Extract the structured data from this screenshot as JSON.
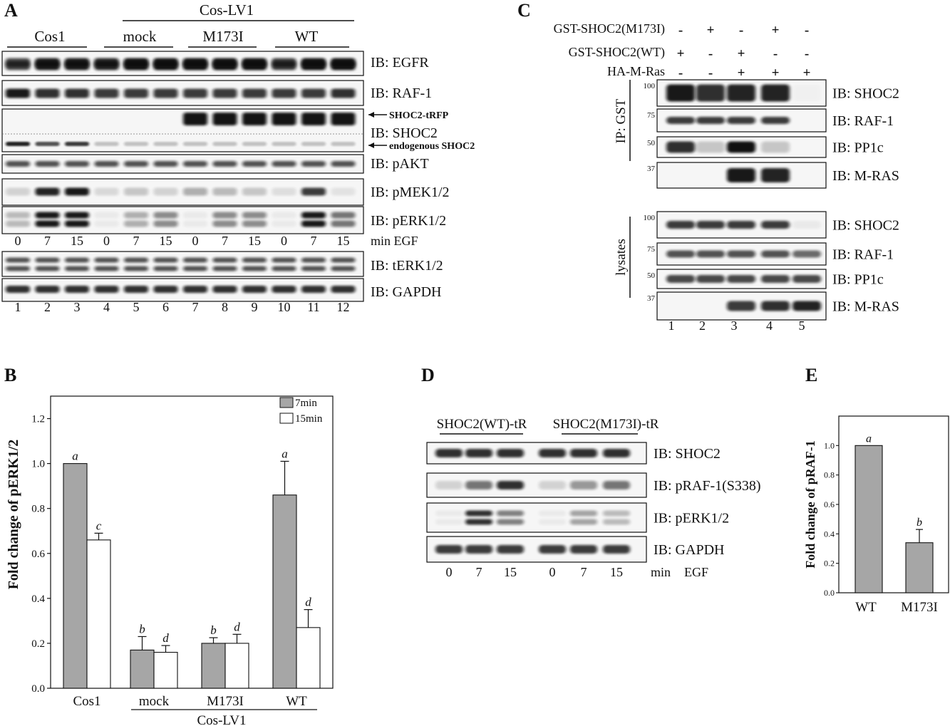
{
  "panelA": {
    "letter": "A",
    "group_header": "Cos-LV1",
    "groups": [
      "Cos1",
      "mock",
      "M173I",
      "WT"
    ],
    "blots": [
      {
        "key": "egfr",
        "label": "IB: EGFR"
      },
      {
        "key": "raf1",
        "label": "IB: RAF-1"
      },
      {
        "key": "shoc2",
        "label": "IB: SHOC2"
      },
      {
        "key": "pakt",
        "label": "IB: pAKT"
      },
      {
        "key": "pmek",
        "label": "IB: pMEK1/2"
      },
      {
        "key": "perk",
        "label": "IB: pERK1/2"
      },
      {
        "key": "terk",
        "label": "IB: tERK1/2"
      },
      {
        "key": "gapdh",
        "label": "IB: GAPDH"
      }
    ],
    "arrow_labels": {
      "tagged": "SHOC2-tRFP",
      "endogenous": "endogenous SHOC2"
    },
    "time_labels": [
      "0",
      "7",
      "15",
      "0",
      "7",
      "15",
      "0",
      "7",
      "15",
      "0",
      "7",
      "15"
    ],
    "time_unit": "min EGF",
    "lanes": [
      "1",
      "2",
      "3",
      "4",
      "5",
      "6",
      "7",
      "8",
      "9",
      "10",
      "11",
      "12"
    ]
  },
  "panelB": {
    "letter": "B",
    "group_caption": "Cos-LV1",
    "chart_data": {
      "type": "bar",
      "categories": [
        "Cos1",
        "mock",
        "M173I",
        "WT"
      ],
      "series": [
        {
          "name": "7min",
          "values": [
            1.0,
            0.17,
            0.2,
            0.86
          ],
          "errors": [
            0,
            0.06,
            0.025,
            0.15
          ],
          "letters": [
            "a",
            "b",
            "b",
            "a"
          ],
          "color": "#a6a6a6"
        },
        {
          "name": "15min",
          "values": [
            0.66,
            0.16,
            0.2,
            0.27
          ],
          "errors": [
            0.03,
            0.03,
            0.04,
            0.08
          ],
          "letters": [
            "c",
            "d",
            "d",
            "d"
          ],
          "color": "#ffffff"
        }
      ],
      "ylabel": "Fold change of pERK1/2",
      "ylim": [
        0,
        1.3
      ],
      "yticks": [
        "0.0",
        "0.2",
        "0.4",
        "0.6",
        "0.8",
        "1.0",
        "1.2"
      ],
      "legend": "top-right"
    }
  },
  "panelC": {
    "letter": "C",
    "conditions": [
      {
        "label": "GST-SHOC2(M173I)",
        "signs": [
          "-",
          "+",
          "-",
          "+",
          "-"
        ]
      },
      {
        "label": "GST-SHOC2(WT)",
        "signs": [
          "+",
          "-",
          "+",
          "-",
          "-"
        ]
      },
      {
        "label": "HA-M-Ras",
        "signs": [
          "-",
          "-",
          "+",
          "+",
          "+"
        ]
      }
    ],
    "ip_label": "IP: GST",
    "lysate_label": "lysates",
    "ip_blots": [
      {
        "label": "IB: SHOC2",
        "mw": "100"
      },
      {
        "label": "IB: RAF-1",
        "mw": "75"
      },
      {
        "label": "IB: PP1c",
        "mw": "50"
      },
      {
        "label": "IB: M-RAS",
        "mw": "37"
      }
    ],
    "lysate_blots": [
      {
        "label": "IB: SHOC2",
        "mw": "100"
      },
      {
        "label": "IB: RAF-1",
        "mw": "75"
      },
      {
        "label": "IB: PP1c",
        "mw": "50"
      },
      {
        "label": "IB: M-RAS",
        "mw": "37"
      }
    ],
    "lanes": [
      "1",
      "2",
      "3",
      "4",
      "5"
    ]
  },
  "panelD": {
    "letter": "D",
    "groups": [
      "SHOC2(WT)-tR",
      "SHOC2(M173I)-tR"
    ],
    "blots": [
      "IB: SHOC2",
      "IB: pRAF-1(S338)",
      "IB: pERK1/2",
      "IB: GAPDH"
    ],
    "time_labels": [
      "0",
      "7",
      "15",
      "0",
      "7",
      "15"
    ],
    "time_unit_min": "min",
    "time_unit_egf": "EGF"
  },
  "panelE": {
    "letter": "E",
    "chart_data": {
      "type": "bar",
      "categories": [
        "WT",
        "M173I"
      ],
      "values": [
        1.0,
        0.34
      ],
      "errors": [
        0,
        0.09
      ],
      "letters": [
        "a",
        "b"
      ],
      "ylabel": "Fold change of pRAF-1",
      "ylim": [
        0,
        1.2
      ],
      "yticks": [
        "0.0",
        "0.2",
        "0.4",
        "0.6",
        "0.8",
        "1.0"
      ],
      "color": "#a6a6a6"
    }
  }
}
